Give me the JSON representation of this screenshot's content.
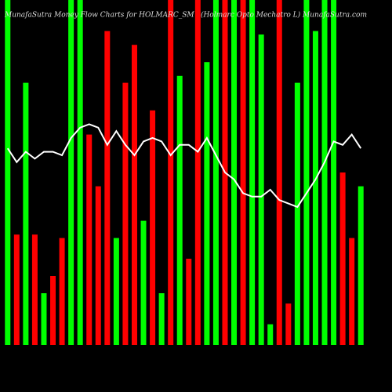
{
  "chart_data": {
    "type": "bar",
    "title": "MunafaSutra  Money Flow  Charts for HOLMARC_SM",
    "subtitle": "(Holmarc Opto  Mechatro  L) MunafaSutra.com",
    "ylim": [
      0,
      100
    ],
    "series": [
      {
        "values": [
          100,
          32,
          76,
          32,
          15,
          20,
          31,
          100,
          100,
          61,
          46,
          91,
          31,
          76,
          87,
          36,
          68,
          15,
          100,
          78,
          25,
          100,
          82,
          100,
          100,
          100,
          100,
          100,
          90,
          6,
          100,
          12,
          76,
          100,
          91,
          100,
          100,
          50,
          31,
          46
        ],
        "colors": [
          "#00ff00",
          "#ff0000",
          "#00ff00",
          "#ff0000",
          "#00ff00",
          "#ff0000",
          "#ff0000",
          "#00ff00",
          "#00ff00",
          "#ff0000",
          "#ff0000",
          "#ff0000",
          "#00ff00",
          "#ff0000",
          "#ff0000",
          "#00ff00",
          "#ff0000",
          "#00ff00",
          "#ff0000",
          "#00ff00",
          "#ff0000",
          "#ff0000",
          "#00ff00",
          "#00ff00",
          "#ff0000",
          "#00ff00",
          "#ff0000",
          "#00ff00",
          "#00ff00",
          "#00ff00",
          "#ff0000",
          "#ff0000",
          "#00ff00",
          "#00ff00",
          "#00ff00",
          "#00ff00",
          "#00ff00",
          "#ff0000",
          "#ff0000",
          "#00ff00"
        ]
      },
      {
        "type": "line",
        "color": "#ffffff",
        "values": [
          57,
          53,
          56,
          54,
          56,
          56,
          55,
          60,
          63,
          64,
          63,
          58,
          62,
          58,
          55,
          59,
          60,
          59,
          55,
          58,
          58,
          56,
          60,
          55,
          50,
          48,
          44,
          43,
          43,
          45,
          42,
          41,
          40,
          44,
          48,
          53,
          59,
          58,
          61,
          57
        ]
      }
    ]
  }
}
